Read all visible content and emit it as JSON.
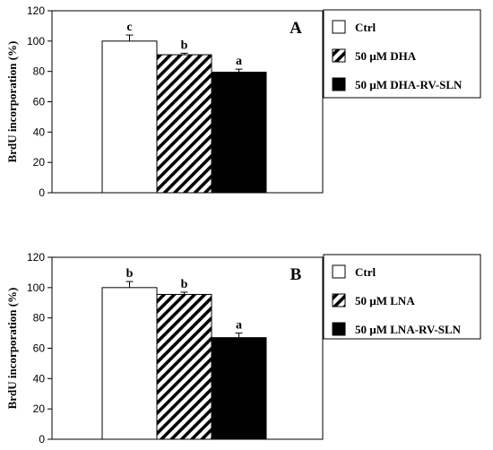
{
  "chart_data": [
    {
      "type": "bar",
      "panel_label": "A",
      "ylabel": "BrdU incorporation (%)",
      "ylim": [
        0,
        120
      ],
      "yticks": [
        0,
        20,
        40,
        60,
        80,
        100,
        120
      ],
      "series": [
        {
          "name": "Ctrl",
          "value": 100,
          "error": 4,
          "significance": "c",
          "fill": "white"
        },
        {
          "name": "50 µM DHA",
          "value": 91,
          "error": 1,
          "significance": "b",
          "fill": "hatch"
        },
        {
          "name": "50 µM DHA-RV-SLN",
          "value": 79.5,
          "error": 2,
          "significance": "a",
          "fill": "black"
        }
      ],
      "legend_position": "right"
    },
    {
      "type": "bar",
      "panel_label": "B",
      "ylabel": "BrdU incorporation (%)",
      "ylim": [
        0,
        120
      ],
      "yticks": [
        0,
        20,
        40,
        60,
        80,
        100,
        120
      ],
      "series": [
        {
          "name": "Ctrl",
          "value": 100,
          "error": 4,
          "significance": "b",
          "fill": "white"
        },
        {
          "name": "50 µM LNA",
          "value": 95.5,
          "error": 1.5,
          "significance": "b",
          "fill": "hatch"
        },
        {
          "name": "50 µM LNA-RV-SLN",
          "value": 67,
          "error": 3,
          "significance": "a",
          "fill": "black"
        }
      ],
      "legend_position": "right"
    }
  ]
}
